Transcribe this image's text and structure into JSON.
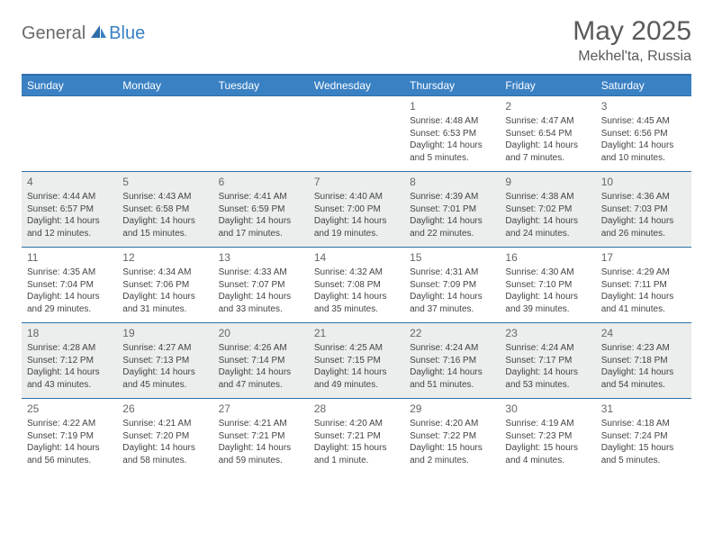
{
  "brand": {
    "part1": "General",
    "part2": "Blue"
  },
  "title": "May 2025",
  "location": "Mekhel'ta, Russia",
  "colors": {
    "header_bg": "#3a81c4",
    "header_text": "#ffffff",
    "row_divider": "#2f6fa8",
    "alt_row_bg": "#eceded",
    "text": "#444444",
    "daynum": "#666666"
  },
  "weekdays": [
    "Sunday",
    "Monday",
    "Tuesday",
    "Wednesday",
    "Thursday",
    "Friday",
    "Saturday"
  ],
  "weeks": [
    [
      null,
      null,
      null,
      null,
      {
        "n": "1",
        "sr": "4:48 AM",
        "ss": "6:53 PM",
        "dl": "14 hours and 5 minutes."
      },
      {
        "n": "2",
        "sr": "4:47 AM",
        "ss": "6:54 PM",
        "dl": "14 hours and 7 minutes."
      },
      {
        "n": "3",
        "sr": "4:45 AM",
        "ss": "6:56 PM",
        "dl": "14 hours and 10 minutes."
      }
    ],
    [
      {
        "n": "4",
        "sr": "4:44 AM",
        "ss": "6:57 PM",
        "dl": "14 hours and 12 minutes."
      },
      {
        "n": "5",
        "sr": "4:43 AM",
        "ss": "6:58 PM",
        "dl": "14 hours and 15 minutes."
      },
      {
        "n": "6",
        "sr": "4:41 AM",
        "ss": "6:59 PM",
        "dl": "14 hours and 17 minutes."
      },
      {
        "n": "7",
        "sr": "4:40 AM",
        "ss": "7:00 PM",
        "dl": "14 hours and 19 minutes."
      },
      {
        "n": "8",
        "sr": "4:39 AM",
        "ss": "7:01 PM",
        "dl": "14 hours and 22 minutes."
      },
      {
        "n": "9",
        "sr": "4:38 AM",
        "ss": "7:02 PM",
        "dl": "14 hours and 24 minutes."
      },
      {
        "n": "10",
        "sr": "4:36 AM",
        "ss": "7:03 PM",
        "dl": "14 hours and 26 minutes."
      }
    ],
    [
      {
        "n": "11",
        "sr": "4:35 AM",
        "ss": "7:04 PM",
        "dl": "14 hours and 29 minutes."
      },
      {
        "n": "12",
        "sr": "4:34 AM",
        "ss": "7:06 PM",
        "dl": "14 hours and 31 minutes."
      },
      {
        "n": "13",
        "sr": "4:33 AM",
        "ss": "7:07 PM",
        "dl": "14 hours and 33 minutes."
      },
      {
        "n": "14",
        "sr": "4:32 AM",
        "ss": "7:08 PM",
        "dl": "14 hours and 35 minutes."
      },
      {
        "n": "15",
        "sr": "4:31 AM",
        "ss": "7:09 PM",
        "dl": "14 hours and 37 minutes."
      },
      {
        "n": "16",
        "sr": "4:30 AM",
        "ss": "7:10 PM",
        "dl": "14 hours and 39 minutes."
      },
      {
        "n": "17",
        "sr": "4:29 AM",
        "ss": "7:11 PM",
        "dl": "14 hours and 41 minutes."
      }
    ],
    [
      {
        "n": "18",
        "sr": "4:28 AM",
        "ss": "7:12 PM",
        "dl": "14 hours and 43 minutes."
      },
      {
        "n": "19",
        "sr": "4:27 AM",
        "ss": "7:13 PM",
        "dl": "14 hours and 45 minutes."
      },
      {
        "n": "20",
        "sr": "4:26 AM",
        "ss": "7:14 PM",
        "dl": "14 hours and 47 minutes."
      },
      {
        "n": "21",
        "sr": "4:25 AM",
        "ss": "7:15 PM",
        "dl": "14 hours and 49 minutes."
      },
      {
        "n": "22",
        "sr": "4:24 AM",
        "ss": "7:16 PM",
        "dl": "14 hours and 51 minutes."
      },
      {
        "n": "23",
        "sr": "4:24 AM",
        "ss": "7:17 PM",
        "dl": "14 hours and 53 minutes."
      },
      {
        "n": "24",
        "sr": "4:23 AM",
        "ss": "7:18 PM",
        "dl": "14 hours and 54 minutes."
      }
    ],
    [
      {
        "n": "25",
        "sr": "4:22 AM",
        "ss": "7:19 PM",
        "dl": "14 hours and 56 minutes."
      },
      {
        "n": "26",
        "sr": "4:21 AM",
        "ss": "7:20 PM",
        "dl": "14 hours and 58 minutes."
      },
      {
        "n": "27",
        "sr": "4:21 AM",
        "ss": "7:21 PM",
        "dl": "14 hours and 59 minutes."
      },
      {
        "n": "28",
        "sr": "4:20 AM",
        "ss": "7:21 PM",
        "dl": "15 hours and 1 minute."
      },
      {
        "n": "29",
        "sr": "4:20 AM",
        "ss": "7:22 PM",
        "dl": "15 hours and 2 minutes."
      },
      {
        "n": "30",
        "sr": "4:19 AM",
        "ss": "7:23 PM",
        "dl": "15 hours and 4 minutes."
      },
      {
        "n": "31",
        "sr": "4:18 AM",
        "ss": "7:24 PM",
        "dl": "15 hours and 5 minutes."
      }
    ]
  ],
  "labels": {
    "sunrise": "Sunrise: ",
    "sunset": "Sunset: ",
    "daylight": "Daylight: "
  }
}
